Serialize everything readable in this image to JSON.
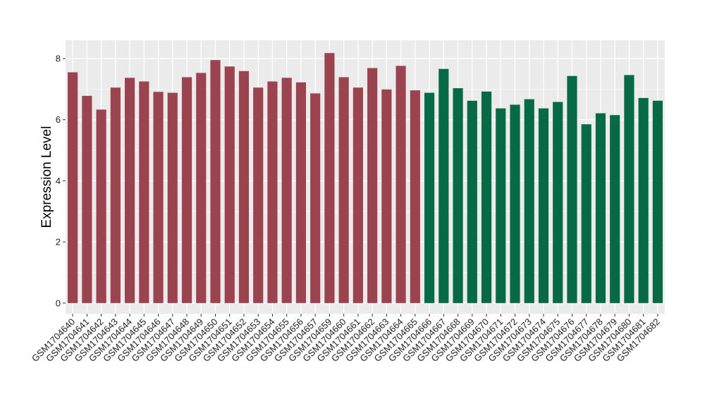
{
  "chart_data": {
    "type": "bar",
    "title": "",
    "xlabel": "",
    "ylabel": "Expression Level",
    "ylim": [
      -0.35,
      8.6
    ],
    "yticks": [
      0,
      2,
      4,
      6,
      8
    ],
    "grid": true,
    "colors": {
      "panel_background": "#ebebeb",
      "grid_major": "#ffffff",
      "group_1": "#9c4350",
      "group_2": "#056a45"
    },
    "categories": [
      "GSM1704640",
      "GSM1704641",
      "GSM1704642",
      "GSM1704643",
      "GSM1704644",
      "GSM1704645",
      "GSM1704646",
      "GSM1704647",
      "GSM1704648",
      "GSM1704649",
      "GSM1704650",
      "GSM1704651",
      "GSM1704652",
      "GSM1704653",
      "GSM1704654",
      "GSM1704655",
      "GSM1704656",
      "GSM1704657",
      "GSM1704659",
      "GSM1704660",
      "GSM1704661",
      "GSM1704662",
      "GSM1704663",
      "GSM1704664",
      "GSM1704665",
      "GSM1704666",
      "GSM1704667",
      "GSM1704668",
      "GSM1704669",
      "GSM1704670",
      "GSM1704671",
      "GSM1704672",
      "GSM1704673",
      "GSM1704674",
      "GSM1704675",
      "GSM1704676",
      "GSM1704677",
      "GSM1704678",
      "GSM1704679",
      "GSM1704680",
      "GSM1704681",
      "GSM1704682"
    ],
    "values": [
      7.55,
      6.78,
      6.33,
      7.05,
      7.37,
      7.25,
      6.91,
      6.88,
      7.39,
      7.53,
      7.95,
      7.74,
      7.59,
      7.05,
      7.25,
      7.37,
      7.22,
      6.86,
      8.18,
      7.39,
      7.05,
      7.69,
      6.99,
      7.76,
      6.96,
      6.88,
      7.66,
      7.03,
      6.62,
      6.92,
      6.37,
      6.49,
      6.67,
      6.37,
      6.58,
      7.43,
      5.85,
      6.21,
      6.15,
      7.46,
      6.71,
      6.62
    ],
    "group_of_bar": [
      1,
      1,
      1,
      1,
      1,
      1,
      1,
      1,
      1,
      1,
      1,
      1,
      1,
      1,
      1,
      1,
      1,
      1,
      1,
      1,
      1,
      1,
      1,
      1,
      1,
      2,
      2,
      2,
      2,
      2,
      2,
      2,
      2,
      2,
      2,
      2,
      2,
      2,
      2,
      2,
      2,
      2
    ]
  }
}
